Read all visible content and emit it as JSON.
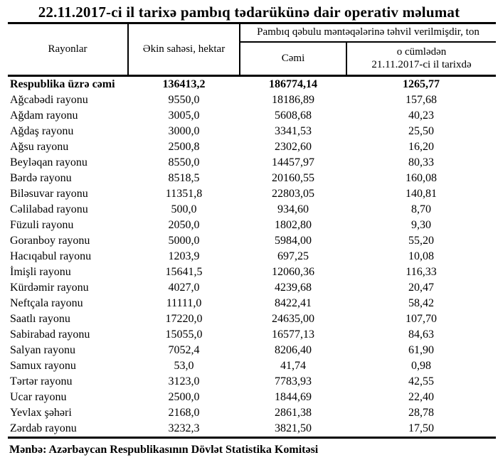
{
  "title": "22.11.2017-ci il tarixə pambıq tədarükünə dair operativ məlumat",
  "colors": {
    "text": "#000000",
    "background": "#ffffff",
    "border": "#000000"
  },
  "table": {
    "headers": {
      "region": "Rayonlar",
      "sown_area": "Əkin sahəsi, hektar",
      "delivered_group": "Pambıq qəbulu məntəqələrinə təhvil verilmişdir, ton",
      "total": "Cəmi",
      "including_line1": "o cümlədən",
      "including_line2": "21.11.2017-ci il tarixdə"
    },
    "total_row": {
      "label": "Respublika üzrə cəmi",
      "values": [
        "136413,2",
        "186774,14",
        "1265,77"
      ]
    },
    "rows": [
      {
        "label": "Ağcabədi rayonu",
        "values": [
          "9550,0",
          "18186,89",
          "157,68"
        ]
      },
      {
        "label": "Ağdam rayonu",
        "values": [
          "3005,0",
          "5608,68",
          "40,23"
        ]
      },
      {
        "label": "Ağdaş rayonu",
        "values": [
          "3000,0",
          "3341,53",
          "25,50"
        ]
      },
      {
        "label": "Ağsu rayonu",
        "values": [
          "2500,8",
          "2302,60",
          "16,20"
        ]
      },
      {
        "label": "Beyləqan rayonu",
        "values": [
          "8550,0",
          "14457,97",
          "80,33"
        ]
      },
      {
        "label": "Bərdə rayonu",
        "values": [
          "8518,5",
          "20160,55",
          "160,08"
        ]
      },
      {
        "label": "Biləsuvar rayonu",
        "values": [
          "11351,8",
          "22803,05",
          "140,81"
        ]
      },
      {
        "label": "Cəlilabad rayonu",
        "values": [
          "500,0",
          "934,60",
          "8,70"
        ]
      },
      {
        "label": "Füzuli rayonu",
        "values": [
          "2050,0",
          "1802,80",
          "9,30"
        ]
      },
      {
        "label": "Goranboy rayonu",
        "values": [
          "5000,0",
          "5984,00",
          "55,20"
        ]
      },
      {
        "label": "Hacıqabul rayonu",
        "values": [
          "1203,9",
          "697,25",
          "10,08"
        ]
      },
      {
        "label": "İmişli rayonu",
        "values": [
          "15641,5",
          "12060,36",
          "116,33"
        ]
      },
      {
        "label": "Kürdəmir rayonu",
        "values": [
          "4027,0",
          "4239,68",
          "20,47"
        ]
      },
      {
        "label": "Neftçala rayonu",
        "values": [
          "11111,0",
          "8422,41",
          "58,42"
        ]
      },
      {
        "label": "Saatlı rayonu",
        "values": [
          "17220,0",
          "24635,00",
          "107,70"
        ]
      },
      {
        "label": "Sabirabad rayonu",
        "values": [
          "15055,0",
          "16577,13",
          "84,63"
        ]
      },
      {
        "label": "Salyan rayonu",
        "values": [
          "7052,4",
          "8206,40",
          "61,90"
        ]
      },
      {
        "label": "Samux rayonu",
        "values": [
          "53,0",
          "41,74",
          "0,98"
        ]
      },
      {
        "label": "Tərtər rayonu",
        "values": [
          "3123,0",
          "7783,93",
          "42,55"
        ]
      },
      {
        "label": "Ucar rayonu",
        "values": [
          "2500,0",
          "1844,69",
          "22,40"
        ]
      },
      {
        "label": "Yevlax şəhəri",
        "values": [
          "2168,0",
          "2861,38",
          "28,78"
        ]
      },
      {
        "label": "Zərdab rayonu",
        "values": [
          "3232,3",
          "3821,50",
          "17,50"
        ]
      }
    ]
  },
  "footer": "Mənbə: Azərbaycan Respublikasının Dövlət Statistika Komitəsi"
}
